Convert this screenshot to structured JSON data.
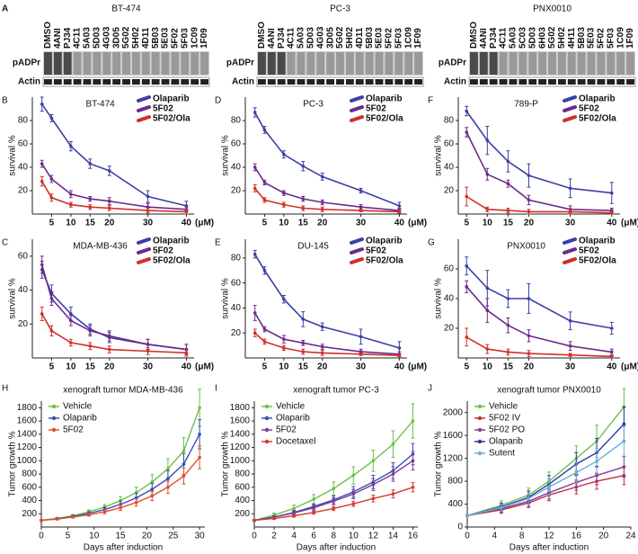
{
  "blot_panel": {
    "panel": "A",
    "blots": [
      {
        "title": "BT-474",
        "lanes": [
          "DMSO",
          "4ANI",
          "PJ34",
          "4C11",
          "5A03",
          "5D03",
          "4G03",
          "3D05",
          "5G02",
          "5H02",
          "4D11",
          "5B03",
          "5E03",
          "5F02",
          "5F03",
          "1C09",
          "1F09"
        ],
        "rows": [
          "pADPr",
          "Actin"
        ]
      },
      {
        "title": "PC-3",
        "lanes": [
          "DMSO",
          "4ANI",
          "PJ34",
          "4C11",
          "5A03",
          "5D03",
          "4G03",
          "3D05",
          "5G02",
          "5H02",
          "4D11",
          "5B03",
          "5E03",
          "5F02",
          "5F03",
          "1C09",
          "1F09"
        ],
        "rows": [
          "pADPr",
          "Actin"
        ]
      },
      {
        "title": "PNX0010",
        "lanes": [
          "DMSO",
          "4ANI",
          "PJ34",
          "4C11",
          "5A03",
          "5C03",
          "5D03",
          "6H03",
          "5G02",
          "5H02",
          "4H11",
          "5B03",
          "5E03",
          "5F02",
          "5F03",
          "1C09",
          "1F09"
        ],
        "rows": [
          "pADPr",
          "Actin"
        ]
      }
    ]
  },
  "chart_data": [
    {
      "type": "dose",
      "panel": "B",
      "title": "BT-474",
      "y_label": "survival %",
      "x_unit": "(μM)",
      "x": [
        2.5,
        5,
        10,
        15,
        20,
        30,
        40
      ],
      "xlim": [
        0,
        42
      ],
      "xticks": [
        5,
        10,
        15,
        20,
        30,
        40
      ],
      "ylim": [
        0,
        100
      ],
      "yticks": [
        20,
        40,
        60,
        80
      ],
      "series": [
        {
          "name": "Olaparib",
          "color": "#3b3fa6",
          "values": [
            94,
            82,
            58,
            43,
            37,
            15,
            7
          ],
          "errors": [
            6,
            3,
            4,
            4,
            4,
            5,
            4
          ]
        },
        {
          "name": "5F02",
          "color": "#6b2a8c",
          "values": [
            43,
            30,
            17,
            13,
            11,
            6,
            4
          ],
          "errors": [
            3,
            3,
            3,
            2,
            3,
            3,
            2
          ]
        },
        {
          "name": "5F02/Ola",
          "color": "#d0302a",
          "values": [
            28,
            14,
            8,
            6,
            5,
            3,
            2
          ],
          "errors": [
            4,
            3,
            2,
            2,
            2,
            2,
            2
          ]
        }
      ]
    },
    {
      "type": "dose",
      "panel": "D",
      "title": "PC-3",
      "y_label": "survival %",
      "x_unit": "(μM)",
      "x": [
        2.5,
        5,
        10,
        15,
        20,
        30,
        40
      ],
      "xlim": [
        0,
        42
      ],
      "xticks": [
        5,
        10,
        15,
        20,
        30,
        40
      ],
      "ylim": [
        0,
        100
      ],
      "yticks": [
        20,
        40,
        60,
        80
      ],
      "series": [
        {
          "name": "Olaparib",
          "color": "#3b3fa6",
          "values": [
            87,
            72,
            51,
            41,
            32,
            20,
            7
          ],
          "errors": [
            4,
            3,
            3,
            4,
            3,
            2,
            3
          ]
        },
        {
          "name": "5F02",
          "color": "#6b2a8c",
          "values": [
            40,
            27,
            18,
            13,
            10,
            6,
            3
          ],
          "errors": [
            3,
            2,
            2,
            2,
            2,
            2,
            2
          ]
        },
        {
          "name": "5F02/Ola",
          "color": "#d0302a",
          "values": [
            22,
            12,
            8,
            5,
            4,
            3,
            2
          ],
          "errors": [
            3,
            2,
            2,
            2,
            2,
            1,
            1
          ]
        }
      ]
    },
    {
      "type": "dose",
      "panel": "F",
      "title": "789-P",
      "y_label": "survival %",
      "x_unit": "(μM)",
      "x": [
        5,
        10,
        15,
        20,
        30,
        40
      ],
      "xlim": [
        3,
        42
      ],
      "xticks": [
        5,
        10,
        15,
        20,
        30,
        40
      ],
      "ylim": [
        0,
        100
      ],
      "yticks": [
        20,
        40,
        60,
        80
      ],
      "series": [
        {
          "name": "Olaparib",
          "color": "#3b3fa6",
          "values": [
            88,
            63,
            45,
            33,
            22,
            18
          ],
          "errors": [
            4,
            12,
            9,
            10,
            8,
            9
          ]
        },
        {
          "name": "5F02",
          "color": "#6b2a8c",
          "values": [
            70,
            34,
            26,
            12,
            4,
            3
          ],
          "errors": [
            4,
            5,
            3,
            4,
            3,
            2
          ]
        },
        {
          "name": "5F02/Ola",
          "color": "#d0302a",
          "values": [
            15,
            4,
            3,
            2,
            2,
            1
          ],
          "errors": [
            8,
            2,
            2,
            2,
            2,
            1
          ]
        }
      ]
    },
    {
      "type": "dose",
      "panel": "C",
      "title": "MDA-MB-436",
      "y_label": "survival %",
      "x_unit": "(μM)",
      "x": [
        2.5,
        5,
        10,
        15,
        20,
        30,
        40
      ],
      "xlim": [
        0,
        42
      ],
      "xticks": [
        5,
        10,
        15,
        20,
        30,
        40
      ],
      "ylim": [
        0,
        70
      ],
      "yticks": [
        20,
        40,
        60
      ],
      "series": [
        {
          "name": "Olaparib",
          "color": "#3b3fa6",
          "values": [
            52,
            38,
            26,
            17,
            12,
            8,
            5
          ],
          "errors": [
            5,
            5,
            4,
            3,
            3,
            3,
            3
          ]
        },
        {
          "name": "5F02",
          "color": "#6b2a8c",
          "values": [
            55,
            35,
            22,
            16,
            13,
            8,
            5
          ],
          "errors": [
            5,
            4,
            3,
            3,
            3,
            3,
            3
          ]
        },
        {
          "name": "5F02/Ola",
          "color": "#d0302a",
          "values": [
            26,
            16,
            9,
            7,
            5,
            4,
            3
          ],
          "errors": [
            4,
            3,
            2,
            2,
            2,
            2,
            2
          ]
        }
      ]
    },
    {
      "type": "dose",
      "panel": "E",
      "title": "DU-145",
      "y_label": "survival %",
      "x_unit": "(μM)",
      "x": [
        2.5,
        5,
        10,
        15,
        20,
        30,
        40
      ],
      "xlim": [
        0,
        42
      ],
      "xticks": [
        5,
        10,
        15,
        20,
        30,
        40
      ],
      "ylim": [
        0,
        95
      ],
      "yticks": [
        20,
        40,
        60,
        80
      ],
      "series": [
        {
          "name": "Olaparib",
          "color": "#3b3fa6",
          "values": [
            83,
            70,
            47,
            31,
            25,
            17,
            8
          ],
          "errors": [
            3,
            3,
            3,
            6,
            3,
            6,
            5
          ]
        },
        {
          "name": "5F02",
          "color": "#6b2a8c",
          "values": [
            36,
            23,
            15,
            12,
            9,
            5,
            3
          ],
          "errors": [
            6,
            2,
            3,
            2,
            2,
            2,
            2
          ]
        },
        {
          "name": "5F02/Ola",
          "color": "#d0302a",
          "values": [
            20,
            13,
            8,
            5,
            4,
            3,
            2
          ],
          "errors": [
            3,
            2,
            2,
            2,
            2,
            1,
            1
          ]
        }
      ]
    },
    {
      "type": "dose",
      "panel": "G",
      "title": "PNX0010",
      "y_label": "survival %",
      "x_unit": "(μM)",
      "x": [
        5,
        10,
        15,
        20,
        30,
        40
      ],
      "xlim": [
        3,
        42
      ],
      "xticks": [
        5,
        10,
        15,
        20,
        30,
        40
      ],
      "ylim": [
        0,
        80
      ],
      "yticks": [
        20,
        40,
        60
      ],
      "series": [
        {
          "name": "Olaparib",
          "color": "#3b3fa6",
          "values": [
            62,
            47,
            40,
            40,
            25,
            20
          ],
          "errors": [
            6,
            12,
            6,
            10,
            6,
            4
          ]
        },
        {
          "name": "5F02",
          "color": "#6b2a8c",
          "values": [
            48,
            32,
            22,
            15,
            8,
            4
          ],
          "errors": [
            4,
            8,
            5,
            4,
            3,
            2
          ]
        },
        {
          "name": "5F02/Ola",
          "color": "#d0302a",
          "values": [
            14,
            6,
            4,
            3,
            2,
            1
          ],
          "errors": [
            6,
            3,
            2,
            2,
            1,
            1
          ]
        }
      ]
    },
    {
      "type": "growth",
      "panel": "H",
      "title": "xenograft tumor MDA-MB-436",
      "y_label": "Tumor growth %",
      "x_label": "Days after induction",
      "x": [
        0,
        3,
        6,
        9,
        12,
        15,
        18,
        21,
        24,
        27,
        30
      ],
      "xlim": [
        0,
        31
      ],
      "xticks": [
        0,
        5,
        10,
        15,
        20,
        25,
        30
      ],
      "ylim": [
        0,
        1900
      ],
      "yticks": [
        200,
        400,
        600,
        800,
        1000,
        1200,
        1400,
        1600,
        1800
      ],
      "series": [
        {
          "name": "Vehicle",
          "color": "#6cc04a",
          "values": [
            100,
            130,
            170,
            230,
            300,
            400,
            520,
            680,
            880,
            1150,
            1800
          ],
          "errors": [
            10,
            15,
            20,
            30,
            40,
            60,
            80,
            110,
            150,
            200,
            280
          ]
        },
        {
          "name": "Olaparib",
          "color": "#3a4fb0",
          "values": [
            100,
            125,
            160,
            205,
            265,
            340,
            440,
            570,
            730,
            950,
            1400
          ],
          "errors": [
            10,
            15,
            20,
            25,
            35,
            50,
            70,
            90,
            120,
            160,
            220
          ]
        },
        {
          "name": "5F02",
          "color": "#e05030",
          "values": [
            100,
            120,
            150,
            185,
            230,
            290,
            370,
            470,
            600,
            770,
            1050
          ],
          "errors": [
            10,
            12,
            15,
            20,
            30,
            40,
            55,
            70,
            90,
            120,
            170
          ]
        }
      ]
    },
    {
      "type": "growth",
      "panel": "I",
      "title": "xenograft tumor PC-3",
      "y_label": "Tumor growth %",
      "x_label": "Days after induction",
      "x": [
        0,
        2,
        4,
        6,
        8,
        10,
        12,
        14,
        16
      ],
      "xlim": [
        0,
        16.5
      ],
      "xticks": [
        0,
        2,
        4,
        6,
        8,
        10,
        12,
        14,
        16
      ],
      "ylim": [
        0,
        1900
      ],
      "yticks": [
        200,
        400,
        600,
        800,
        1000,
        1200,
        1400,
        1600,
        1800
      ],
      "series": [
        {
          "name": "Vehicle",
          "color": "#6cc04a",
          "values": [
            100,
            180,
            280,
            420,
            580,
            780,
            1000,
            1250,
            1600
          ],
          "errors": [
            10,
            30,
            50,
            70,
            100,
            130,
            160,
            200,
            260
          ]
        },
        {
          "name": "Olaparib",
          "color": "#3a4fb0",
          "values": [
            100,
            150,
            220,
            310,
            410,
            530,
            680,
            850,
            1100
          ],
          "errors": [
            10,
            20,
            30,
            40,
            60,
            80,
            100,
            120,
            160
          ]
        },
        {
          "name": "5F02",
          "color": "#7a3a9a",
          "values": [
            100,
            150,
            210,
            290,
            390,
            500,
            640,
            800,
            1000
          ],
          "errors": [
            10,
            20,
            30,
            40,
            50,
            70,
            90,
            110,
            140
          ]
        },
        {
          "name": "Docetaxel",
          "color": "#d83a2a",
          "values": [
            100,
            130,
            170,
            220,
            280,
            350,
            430,
            500,
            600
          ],
          "errors": [
            10,
            15,
            20,
            25,
            30,
            40,
            50,
            60,
            70
          ]
        }
      ]
    },
    {
      "type": "growth",
      "panel": "J",
      "title": "xenograft tumor PNX0010",
      "y_label": "Tumor growth %",
      "x_label": "Days after induction",
      "x": [
        0,
        5,
        9,
        12,
        16,
        19,
        23
      ],
      "xlim": [
        0,
        24
      ],
      "xticks": [
        0,
        4,
        8,
        12,
        16,
        20,
        24
      ],
      "ylim": [
        0,
        2200
      ],
      "yticks": [
        0,
        400,
        800,
        1200,
        1600,
        2000
      ],
      "series": [
        {
          "name": "Vehicle",
          "color": "#6cc04a",
          "values": [
            200,
            380,
            560,
            800,
            1200,
            1500,
            2100
          ],
          "errors": [
            20,
            80,
            120,
            160,
            220,
            280,
            320
          ]
        },
        {
          "name": "5F02 IV",
          "color": "#c03040",
          "values": [
            200,
            300,
            420,
            560,
            700,
            800,
            900
          ],
          "errors": [
            20,
            60,
            80,
            100,
            120,
            140,
            160
          ]
        },
        {
          "name": "5F02 PO",
          "color": "#8a3a9a",
          "values": [
            200,
            320,
            450,
            600,
            780,
            900,
            1050
          ],
          "errors": [
            20,
            60,
            90,
            110,
            140,
            160,
            180
          ]
        },
        {
          "name": "Olaparib",
          "color": "#2a3aa0",
          "values": [
            200,
            350,
            520,
            750,
            1100,
            1300,
            1800
          ],
          "errors": [
            20,
            70,
            110,
            150,
            200,
            250,
            300
          ]
        },
        {
          "name": "Sutent",
          "color": "#6ab0d8",
          "values": [
            200,
            340,
            500,
            700,
            950,
            1150,
            1500
          ],
          "errors": [
            20,
            60,
            100,
            140,
            180,
            220,
            260
          ]
        }
      ]
    }
  ]
}
